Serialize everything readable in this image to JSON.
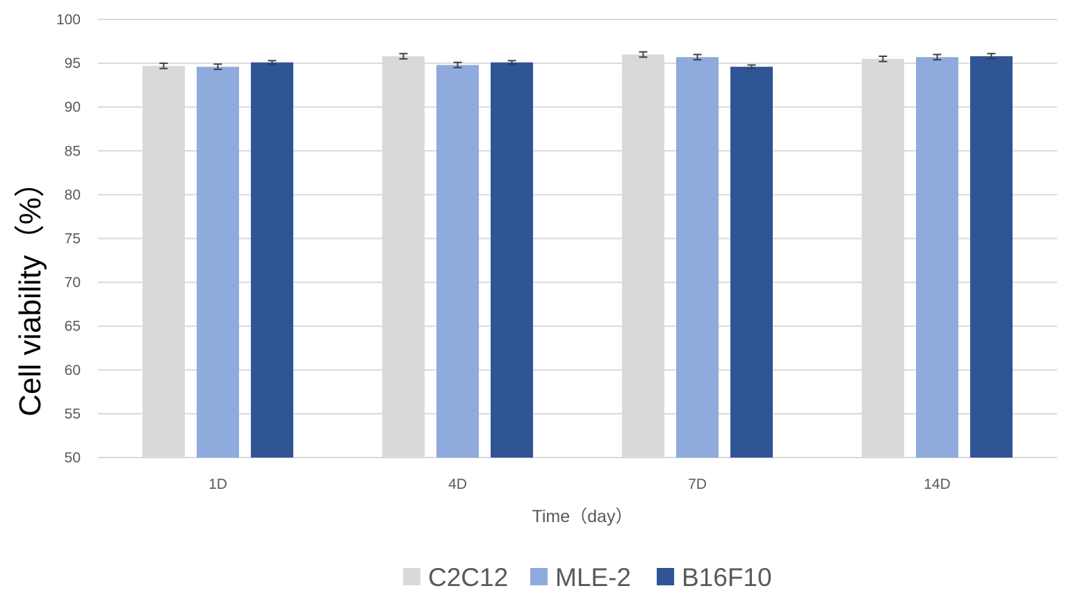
{
  "chart_data": {
    "type": "bar",
    "categories": [
      "1D",
      "4D",
      "7D",
      "14D"
    ],
    "series": [
      {
        "name": "C2C12",
        "color": "#d9d9d9",
        "values": [
          94.7,
          95.8,
          96.0,
          95.5
        ],
        "errors": [
          0.3,
          0.3,
          0.3,
          0.3
        ]
      },
      {
        "name": "MLE-2",
        "color": "#8faadc",
        "values": [
          94.6,
          94.8,
          95.7,
          95.7
        ],
        "errors": [
          0.3,
          0.3,
          0.3,
          0.3
        ]
      },
      {
        "name": "B16F10",
        "color": "#2f5597",
        "values": [
          95.1,
          95.1,
          94.6,
          95.8
        ],
        "errors": [
          0.2,
          0.2,
          0.2,
          0.3
        ]
      }
    ],
    "title": "",
    "xlabel": "Time（day）",
    "ylabel": "Cell viability（%）",
    "ylim": [
      50,
      100
    ],
    "yticks": [
      50,
      55,
      60,
      65,
      70,
      75,
      80,
      85,
      90,
      95,
      100
    ],
    "grid": true,
    "legend_position": "bottom",
    "gridline_color": "#d9d9d9",
    "error_bar_color": "#404040"
  }
}
